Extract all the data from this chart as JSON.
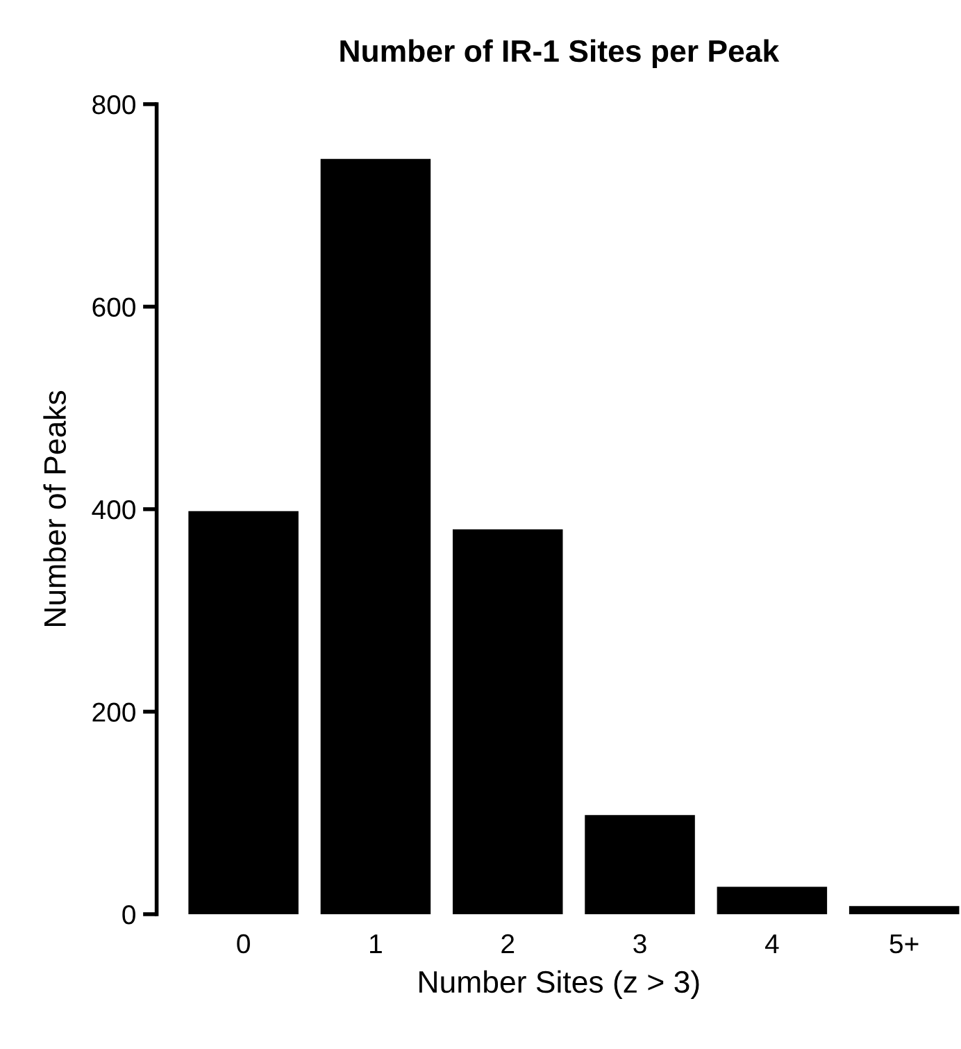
{
  "chart_data": {
    "type": "bar",
    "title": "Number of IR-1 Sites per Peak",
    "xlabel": "Number Sites (z > 3)",
    "ylabel": "Number of Peaks",
    "categories": [
      "0",
      "1",
      "2",
      "3",
      "4",
      "5+"
    ],
    "values": [
      398,
      746,
      380,
      98,
      27,
      8
    ],
    "color": "#000000",
    "ylim": [
      0,
      800
    ],
    "yticks": [
      0,
      200,
      400,
      600,
      800
    ],
    "grid": false,
    "legend": false
  }
}
